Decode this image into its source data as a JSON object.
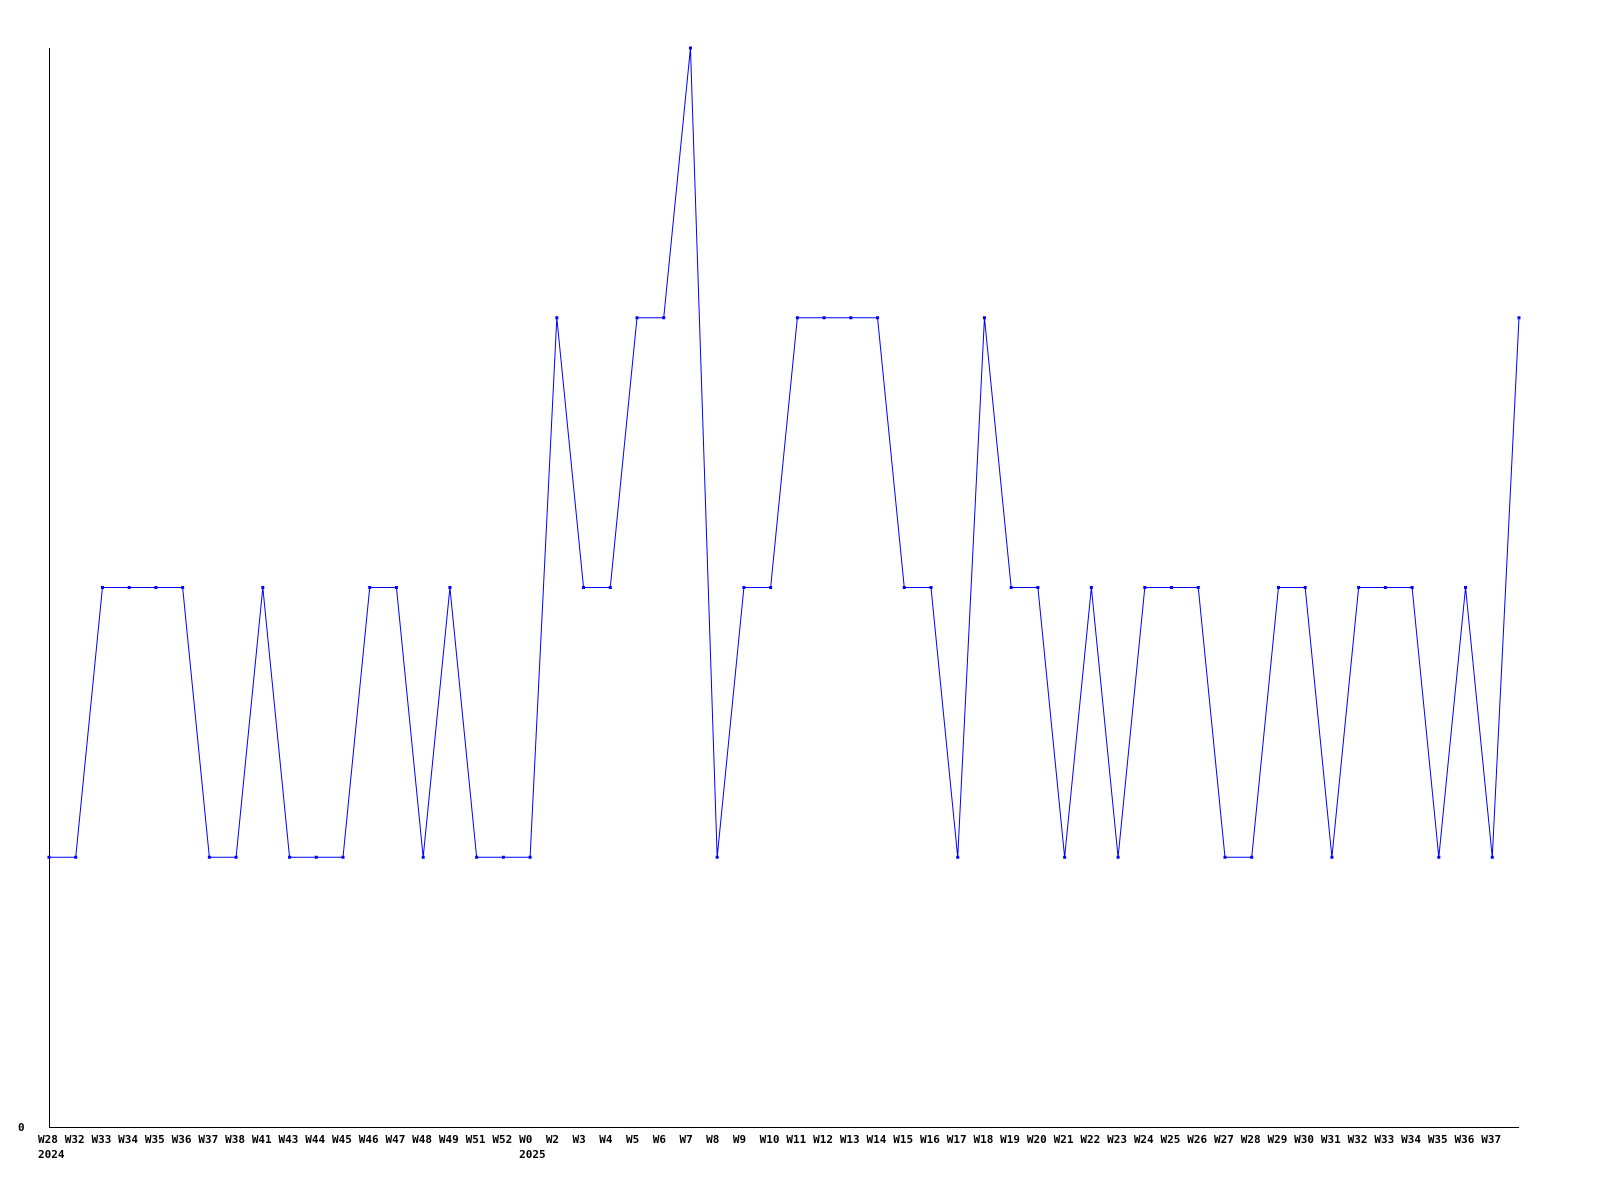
{
  "chart_data": {
    "type": "line",
    "title": "",
    "xlabel": "",
    "ylabel": "",
    "ylim": [
      0,
      4
    ],
    "y_tick_labels": [
      "0"
    ],
    "grid": false,
    "line_color": "#0000ff",
    "categories": [
      "W28",
      "W32",
      "W33",
      "W34",
      "W35",
      "W36",
      "W37",
      "W38",
      "W41",
      "W43",
      "W44",
      "W45",
      "W46",
      "W47",
      "W48",
      "W49",
      "W51",
      "W52",
      "W0",
      "W2",
      "W3",
      "W4",
      "W5",
      "W6",
      "W7",
      "W8",
      "W9",
      "W10",
      "W11",
      "W12",
      "W13",
      "W14",
      "W15",
      "W16",
      "W17",
      "W18",
      "W19",
      "W20",
      "W21",
      "W22",
      "W23",
      "W24",
      "W25",
      "W26",
      "W27",
      "W28",
      "W29",
      "W30",
      "W31",
      "W32",
      "W33",
      "W34",
      "W35",
      "W36",
      "W37",
      ""
    ],
    "year_labels": [
      {
        "index": 0,
        "label": "2024"
      },
      {
        "index": 18,
        "label": "2025"
      }
    ],
    "values": [
      1,
      1,
      2,
      2,
      2,
      2,
      1,
      1,
      2,
      1,
      1,
      1,
      2,
      2,
      1,
      2,
      1,
      1,
      1,
      3,
      2,
      2,
      3,
      3,
      4,
      1,
      2,
      2,
      3,
      3,
      3,
      3,
      2,
      2,
      1,
      3,
      2,
      2,
      1,
      2,
      1,
      2,
      2,
      2,
      1,
      1,
      2,
      2,
      1,
      2,
      2,
      2,
      1,
      2,
      1,
      3
    ]
  }
}
